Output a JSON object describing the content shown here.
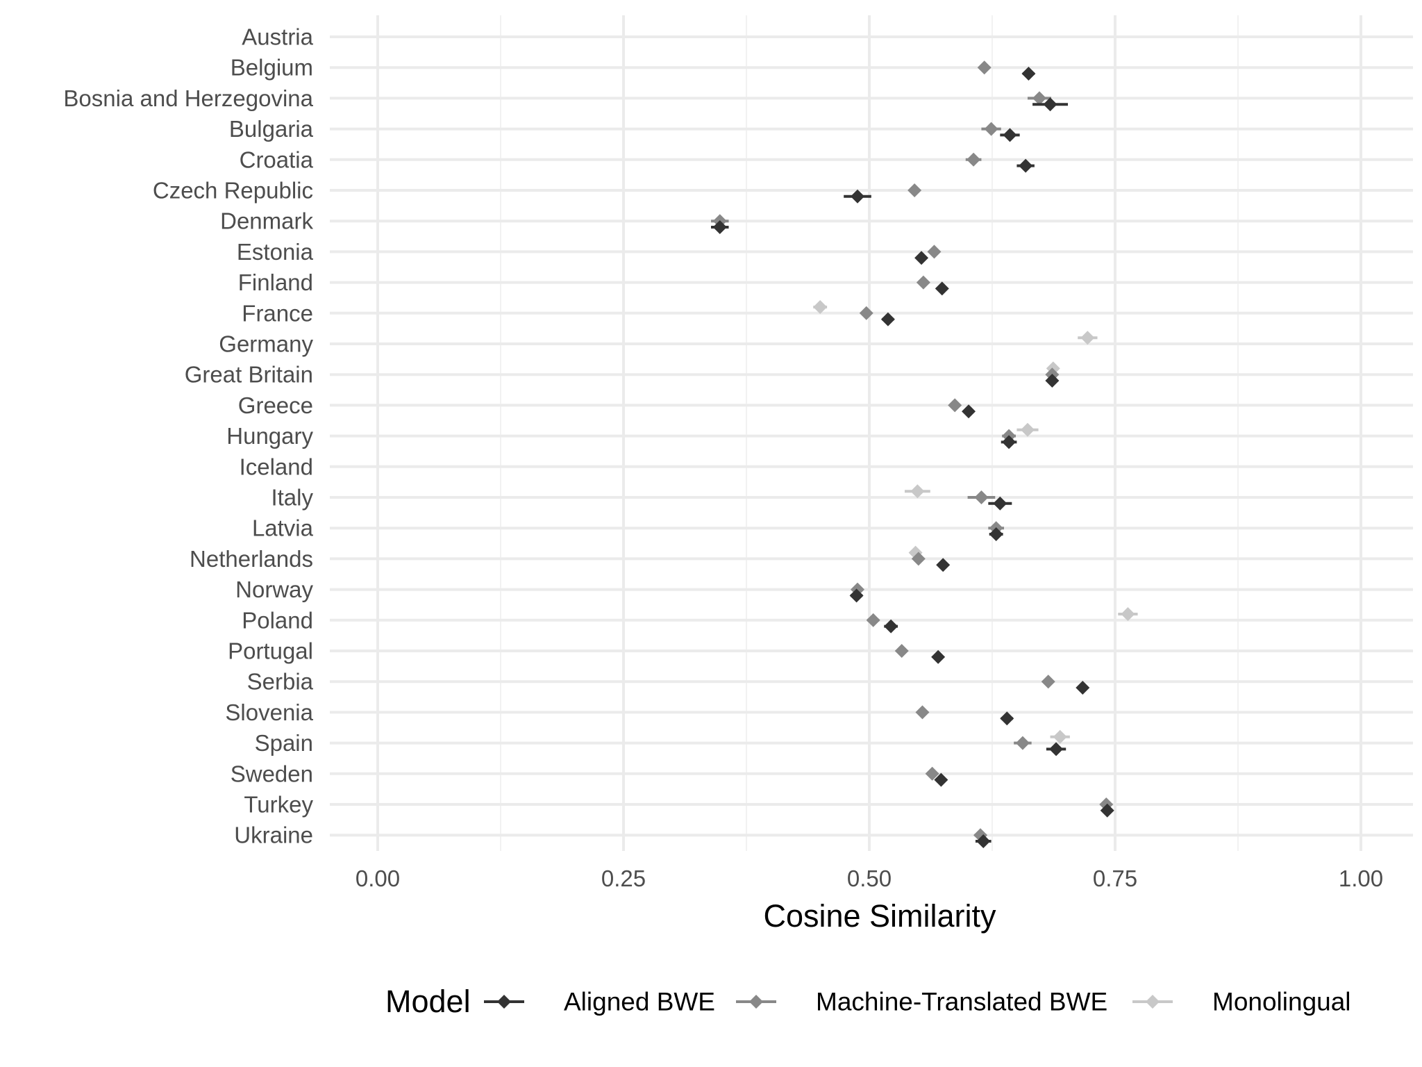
{
  "chart_data": {
    "type": "scatter",
    "xlabel": "Cosine Similarity",
    "xlim": [
      0,
      1
    ],
    "x_ticks": [
      "0.00",
      "0.25",
      "0.50",
      "0.75",
      "1.00"
    ],
    "x_tick_values": [
      0,
      0.25,
      0.5,
      0.75,
      1.0
    ],
    "grid": true,
    "categories": [
      "Austria",
      "Belgium",
      "Bosnia and Herzegovina",
      "Bulgaria",
      "Croatia",
      "Czech Republic",
      "Denmark",
      "Estonia",
      "Finland",
      "France",
      "Germany",
      "Great Britain",
      "Greece",
      "Hungary",
      "Iceland",
      "Italy",
      "Latvia",
      "Netherlands",
      "Norway",
      "Poland",
      "Portugal",
      "Serbia",
      "Slovenia",
      "Spain",
      "Sweden",
      "Turkey",
      "Ukraine"
    ],
    "legend": {
      "title": "Model",
      "position": "bottom"
    },
    "series": [
      {
        "name": "Aligned BWE",
        "color": "#333333",
        "offset": 1,
        "values": [
          null,
          0.662,
          0.684,
          0.643,
          0.659,
          0.488,
          0.348,
          0.553,
          0.574,
          0.519,
          null,
          0.686,
          0.601,
          0.642,
          null,
          0.633,
          0.629,
          0.575,
          0.487,
          0.522,
          0.57,
          0.717,
          0.64,
          0.69,
          0.573,
          0.742,
          0.616
        ],
        "errors": [
          null,
          0.006,
          0.018,
          0.01,
          0.009,
          0.014,
          0.009,
          0.005,
          0.004,
          0.006,
          null,
          0.003,
          0.005,
          0.008,
          null,
          0.012,
          0.007,
          0.004,
          0.006,
          0.007,
          0.004,
          0.005,
          0.006,
          0.01,
          0.004,
          0.004,
          0.008
        ]
      },
      {
        "name": "Machine-Translated BWE",
        "color": "#888888",
        "offset": 0,
        "values": [
          null,
          0.617,
          0.673,
          0.624,
          0.606,
          0.546,
          0.348,
          0.566,
          0.555,
          0.497,
          null,
          0.686,
          0.587,
          0.642,
          null,
          0.614,
          0.629,
          0.55,
          0.488,
          0.504,
          0.533,
          0.682,
          0.554,
          0.656,
          0.564,
          0.741,
          0.613
        ],
        "errors": [
          null,
          0.004,
          0.012,
          0.01,
          0.008,
          0.005,
          0.009,
          0.004,
          0.005,
          0.005,
          null,
          0.004,
          0.004,
          0.007,
          null,
          0.014,
          0.008,
          0.004,
          0.005,
          0.006,
          0.004,
          0.004,
          0.004,
          0.009,
          0.004,
          0.004,
          0.006
        ]
      },
      {
        "name": "Monolingual",
        "color": "#c8c8c8",
        "offset": -1,
        "values": [
          null,
          null,
          null,
          null,
          null,
          null,
          null,
          null,
          null,
          0.45,
          0.722,
          0.687,
          null,
          0.661,
          null,
          0.549,
          null,
          0.547,
          null,
          0.763,
          null,
          null,
          null,
          0.694,
          null,
          null,
          null
        ],
        "errors": [
          null,
          null,
          null,
          null,
          null,
          null,
          null,
          null,
          null,
          0.007,
          0.01,
          0.004,
          null,
          0.011,
          null,
          0.013,
          null,
          0.004,
          null,
          0.01,
          null,
          null,
          null,
          0.01,
          null,
          null,
          null
        ]
      }
    ]
  }
}
